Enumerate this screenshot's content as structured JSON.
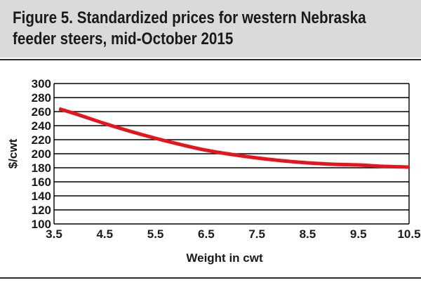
{
  "figure": {
    "title_line1": "Figure 5. Standardized prices for western Nebraska",
    "title_line2": "feeder steers, mid-October 2015"
  },
  "colors": {
    "title_band": "#dadad8",
    "series_line": "#e8141b",
    "grid": "#000000"
  },
  "chart_data": {
    "type": "line",
    "title": "Figure 5. Standardized prices for western Nebraska feeder steers, mid-October 2015",
    "xlabel": "Weight in cwt",
    "ylabel": "$/cwt",
    "xlim": [
      3.5,
      10.5
    ],
    "ylim": [
      100,
      300
    ],
    "x_ticks": [
      3.5,
      4.5,
      5.5,
      6.5,
      7.5,
      8.5,
      9.5,
      10.5
    ],
    "y_ticks": [
      100,
      120,
      140,
      160,
      180,
      200,
      220,
      240,
      260,
      280,
      300
    ],
    "grid": "horizontal",
    "series": [
      {
        "x": [
          3.6,
          4.0,
          4.5,
          5.0,
          5.5,
          6.0,
          6.5,
          7.0,
          7.5,
          8.0,
          8.5,
          9.0,
          9.5,
          10.0,
          10.5
        ],
        "y": [
          264,
          255,
          243,
          232,
          222,
          213,
          205,
          199,
          194,
          190,
          187,
          185,
          184,
          182,
          181
        ]
      }
    ]
  }
}
